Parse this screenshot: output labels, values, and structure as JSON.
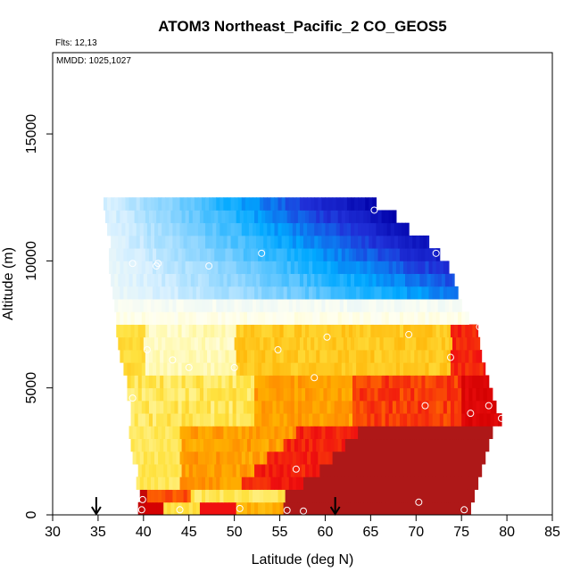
{
  "chart_data": {
    "type": "heatmap",
    "title": "ATOM3 Northeast_Pacific_2 CO_GEOS5",
    "flights_text": "Flts: 12,13",
    "dates_text": "MMDD: 1025,1027",
    "xlabel": "Latitude (deg N)",
    "ylabel": "Altitude (m)",
    "xlim": [
      30,
      85
    ],
    "ylim": [
      0,
      18200
    ],
    "x_ticks": [
      30,
      35,
      40,
      45,
      50,
      55,
      60,
      65,
      70,
      75,
      80,
      85
    ],
    "y_ticks": [
      0,
      5000,
      10000,
      15000
    ],
    "grid": false,
    "arrow_latitudes": [
      34.8,
      61.1
    ],
    "altitude_bins": [
      {
        "z0": 0,
        "z1": 500,
        "lat_min": 39.4,
        "lat_max": 76.0
      },
      {
        "z0": 500,
        "z1": 1000,
        "lat_min": 39.6,
        "lat_max": 76.4
      },
      {
        "z0": 1000,
        "z1": 1500,
        "lat_min": 39.2,
        "lat_max": 76.8
      },
      {
        "z0": 1500,
        "z1": 2000,
        "lat_min": 39.4,
        "lat_max": 77.2
      },
      {
        "z0": 2000,
        "z1": 2500,
        "lat_min": 38.8,
        "lat_max": 77.6
      },
      {
        "z0": 2500,
        "z1": 3000,
        "lat_min": 38.6,
        "lat_max": 78.0
      },
      {
        "z0": 3000,
        "z1": 3500,
        "lat_min": 38.4,
        "lat_max": 78.4
      },
      {
        "z0": 3500,
        "z1": 4000,
        "lat_min": 38.6,
        "lat_max": 79.4
      },
      {
        "z0": 4000,
        "z1": 4500,
        "lat_min": 38.6,
        "lat_max": 78.8
      },
      {
        "z0": 4500,
        "z1": 5000,
        "lat_min": 38.2,
        "lat_max": 78.4
      },
      {
        "z0": 5000,
        "z1": 5500,
        "lat_min": 38.2,
        "lat_max": 78.0
      },
      {
        "z0": 5500,
        "z1": 6000,
        "lat_min": 37.8,
        "lat_max": 77.6
      },
      {
        "z0": 6000,
        "z1": 6500,
        "lat_min": 37.4,
        "lat_max": 77.2
      },
      {
        "z0": 6500,
        "z1": 7000,
        "lat_min": 37.2,
        "lat_max": 77.0
      },
      {
        "z0": 7000,
        "z1": 7500,
        "lat_min": 37.0,
        "lat_max": 76.8
      },
      {
        "z0": 7500,
        "z1": 8000,
        "lat_min": 37.0,
        "lat_max": 75.8
      },
      {
        "z0": 8000,
        "z1": 8500,
        "lat_min": 36.8,
        "lat_max": 75.0
      },
      {
        "z0": 8500,
        "z1": 9000,
        "lat_min": 36.6,
        "lat_max": 74.6
      },
      {
        "z0": 9000,
        "z1": 9500,
        "lat_min": 36.4,
        "lat_max": 74.2
      },
      {
        "z0": 9500,
        "z1": 10000,
        "lat_min": 36.2,
        "lat_max": 73.6
      },
      {
        "z0": 10000,
        "z1": 10500,
        "lat_min": 36.2,
        "lat_max": 72.6
      },
      {
        "z0": 10500,
        "z1": 11000,
        "lat_min": 36.4,
        "lat_max": 71.4
      },
      {
        "z0": 11000,
        "z1": 11500,
        "lat_min": 36.0,
        "lat_max": 69.2
      },
      {
        "z0": 11500,
        "z1": 12000,
        "lat_min": 35.8,
        "lat_max": 67.8
      },
      {
        "z0": 12000,
        "z1": 12500,
        "lat_min": 35.6,
        "lat_max": 65.6
      }
    ],
    "color_scale": {
      "description": "CO mixing ratio relative scale: 0 = low (purple/blue), 1 = high (dark red)",
      "stops": [
        [
          0.0,
          "#3a0080"
        ],
        [
          0.06,
          "#0000a8"
        ],
        [
          0.15,
          "#2030d8"
        ],
        [
          0.24,
          "#00a8ff"
        ],
        [
          0.32,
          "#7ed0ff"
        ],
        [
          0.4,
          "#d8f0ff"
        ],
        [
          0.47,
          "#fffff0"
        ],
        [
          0.54,
          "#fff8a8"
        ],
        [
          0.62,
          "#ffe240"
        ],
        [
          0.7,
          "#ffb000"
        ],
        [
          0.78,
          "#ff6a00"
        ],
        [
          0.86,
          "#f01010"
        ],
        [
          0.93,
          "#d00000"
        ],
        [
          1.0,
          "#a81c1c"
        ]
      ]
    },
    "observation_points": [
      {
        "lat": 39.8,
        "alt": 200
      },
      {
        "lat": 39.9,
        "alt": 600
      },
      {
        "lat": 44.0,
        "alt": 200
      },
      {
        "lat": 50.6,
        "alt": 250
      },
      {
        "lat": 55.8,
        "alt": 180
      },
      {
        "lat": 57.6,
        "alt": 150
      },
      {
        "lat": 70.3,
        "alt": 500
      },
      {
        "lat": 75.3,
        "alt": 200
      },
      {
        "lat": 56.8,
        "alt": 1800
      },
      {
        "lat": 71.0,
        "alt": 4300
      },
      {
        "lat": 76.0,
        "alt": 4000
      },
      {
        "lat": 78.0,
        "alt": 4300
      },
      {
        "lat": 79.4,
        "alt": 3800
      },
      {
        "lat": 38.8,
        "alt": 4600
      },
      {
        "lat": 58.8,
        "alt": 5400
      },
      {
        "lat": 45.0,
        "alt": 5800
      },
      {
        "lat": 50.0,
        "alt": 5800
      },
      {
        "lat": 43.2,
        "alt": 6100
      },
      {
        "lat": 40.4,
        "alt": 6500
      },
      {
        "lat": 54.8,
        "alt": 6500
      },
      {
        "lat": 73.8,
        "alt": 6200
      },
      {
        "lat": 60.2,
        "alt": 7000
      },
      {
        "lat": 69.2,
        "alt": 7100
      },
      {
        "lat": 77.0,
        "alt": 7400
      },
      {
        "lat": 38.8,
        "alt": 9900
      },
      {
        "lat": 41.4,
        "alt": 9800
      },
      {
        "lat": 41.6,
        "alt": 9900
      },
      {
        "lat": 47.2,
        "alt": 9800
      },
      {
        "lat": 53.0,
        "alt": 10300
      },
      {
        "lat": 72.2,
        "alt": 10300
      },
      {
        "lat": 65.4,
        "alt": 12000
      }
    ]
  }
}
